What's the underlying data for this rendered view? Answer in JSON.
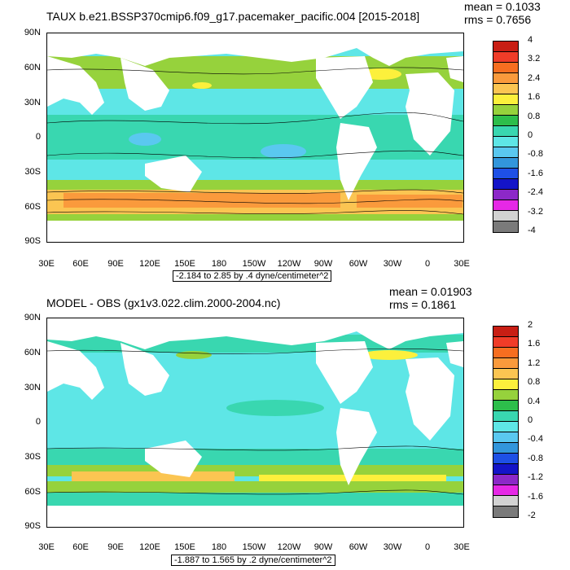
{
  "panels": [
    {
      "title": "TAUX b.e21.BSSP370cmip6.f09_g17.pacemaker_pacific.004 [2015-2018]",
      "mean": "mean = 0.1033",
      "rms": "rms = 0.7656",
      "range_text": "-2.184 to 2.85 by .4 dyne/centimeter^2",
      "colorbar_labels": [
        "4",
        "3.2",
        "2.4",
        "1.6",
        "0.8",
        "0",
        "-0.8",
        "-1.6",
        "-2.4",
        "-3.2",
        "-4"
      ],
      "colorbar_colors": [
        "#c81e14",
        "#f03c28",
        "#f76e20",
        "#fa9a3c",
        "#fbc552",
        "#fcf03c",
        "#96d23c",
        "#2dbe4b",
        "#39d7b0",
        "#5ee6e6",
        "#5ac8f0",
        "#3296dc",
        "#1e50e6",
        "#1414c8",
        "#8c28c8",
        "#e628e6",
        "#d2d2d2",
        "#7a7a7a"
      ]
    },
    {
      "title": "MODEL - OBS (gx1v3.022.clim.2000-2004.nc)",
      "mean": "mean = 0.01903",
      "rms": "rms = 0.1861",
      "range_text": "-1.887 to 1.565 by .2 dyne/centimeter^2",
      "colorbar_labels": [
        "2",
        "1.6",
        "1.2",
        "0.8",
        "0.4",
        "0",
        "-0.4",
        "-0.8",
        "-1.2",
        "-1.6",
        "-2"
      ],
      "colorbar_colors": [
        "#c81e14",
        "#f03c28",
        "#f76e20",
        "#fa9a3c",
        "#fbc552",
        "#fcf03c",
        "#96d23c",
        "#2dbe4b",
        "#39d7b0",
        "#5ee6e6",
        "#5ac8f0",
        "#3296dc",
        "#1e50e6",
        "#1414c8",
        "#8c28c8",
        "#e628e6",
        "#d2d2d2",
        "#7a7a7a"
      ]
    }
  ],
  "axes": {
    "y_labels": [
      "90N",
      "60N",
      "30N",
      "0",
      "30S",
      "60S",
      "90S"
    ],
    "x_labels": [
      "30E",
      "60E",
      "90E",
      "120E",
      "150E",
      "180",
      "150W",
      "120W",
      "90W",
      "60W",
      "30W",
      "0",
      "30E"
    ]
  }
}
